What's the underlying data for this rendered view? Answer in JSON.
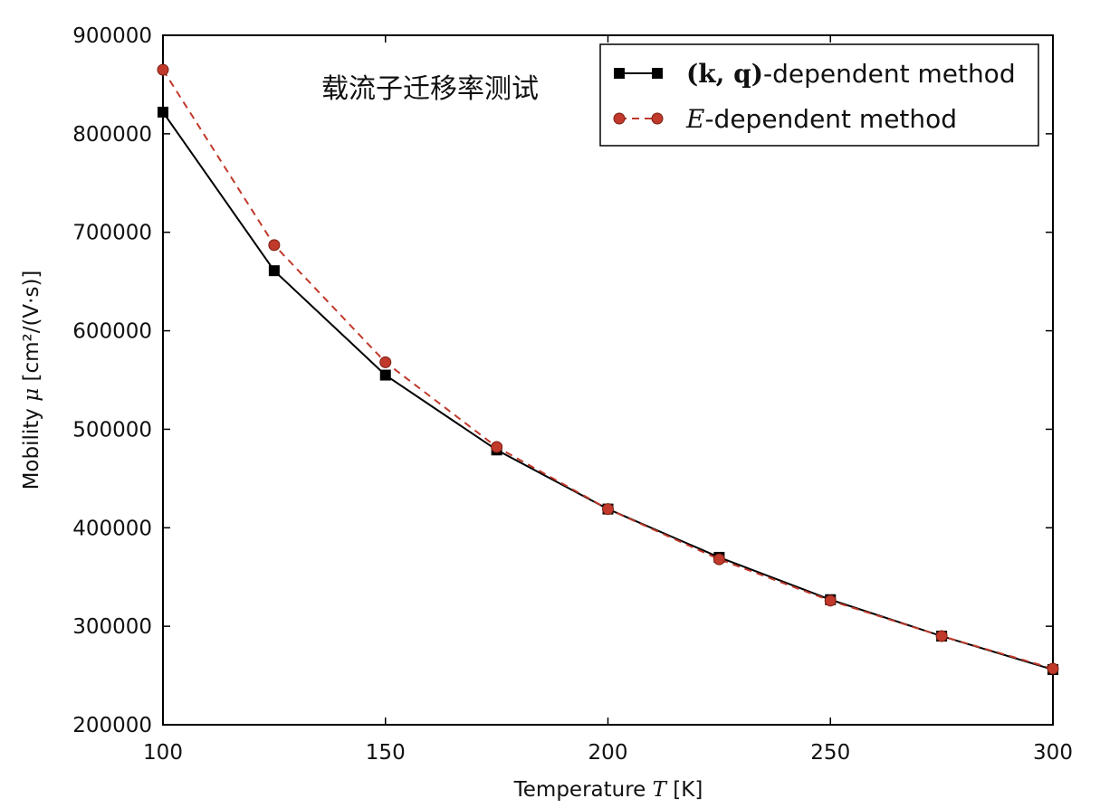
{
  "chart_data": {
    "type": "line",
    "title": "载流子迁移率测试",
    "xlabel": {
      "prefix": "Temperature ",
      "symbol": "T",
      "suffix": " [K]"
    },
    "ylabel": {
      "prefix": "Mobility ",
      "symbol": "μ",
      "suffix": " [cm²/(V·s)]"
    },
    "xlim": [
      100,
      300
    ],
    "ylim": [
      200000,
      900000
    ],
    "xticks": [
      "100",
      "150",
      "200",
      "250",
      "300"
    ],
    "yticks": [
      "200000",
      "300000",
      "400000",
      "500000",
      "600000",
      "700000",
      "800000",
      "900000"
    ],
    "grid": false,
    "legend_position": "top-right",
    "x": [
      100,
      125,
      150,
      175,
      200,
      225,
      250,
      275,
      300
    ],
    "series": [
      {
        "name": "(k, q)-dependent method",
        "name_parts": {
          "math": "(k, q)",
          "text": "-dependent method"
        },
        "values": [
          822000,
          661000,
          555000,
          479000,
          419000,
          370000,
          327000,
          290000,
          256000
        ],
        "color": "#000000",
        "line_style": "solid",
        "marker": "square"
      },
      {
        "name": "E-dependent method",
        "name_parts": {
          "math": "E",
          "text": "-dependent method"
        },
        "values": [
          865000,
          687000,
          568000,
          482000,
          419000,
          368000,
          326000,
          290000,
          257000
        ],
        "color": "#c0392b",
        "line_style": "dashed",
        "marker": "circle"
      }
    ]
  }
}
